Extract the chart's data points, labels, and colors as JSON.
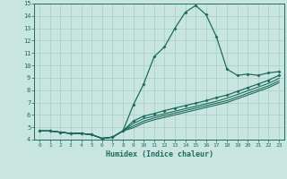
{
  "xlabel": "Humidex (Indice chaleur)",
  "bg_color": "#c8e6df",
  "line_color": "#1e6b5e",
  "grid_color": "#a8cec6",
  "xlim": [
    -0.5,
    23.5
  ],
  "ylim": [
    4,
    15
  ],
  "xticks": [
    0,
    1,
    2,
    3,
    4,
    5,
    6,
    7,
    8,
    9,
    10,
    11,
    12,
    13,
    14,
    15,
    16,
    17,
    18,
    19,
    20,
    21,
    22,
    23
  ],
  "yticks": [
    4,
    5,
    6,
    7,
    8,
    9,
    10,
    11,
    12,
    13,
    14,
    15
  ],
  "line1_x": [
    0,
    1,
    2,
    3,
    4,
    5,
    6,
    7,
    8,
    9,
    10,
    11,
    12,
    13,
    14,
    15,
    16,
    17,
    18,
    19,
    20,
    21,
    22,
    23
  ],
  "line1_y": [
    4.7,
    4.7,
    4.6,
    4.5,
    4.5,
    4.4,
    4.1,
    4.2,
    4.7,
    6.8,
    8.5,
    10.7,
    11.5,
    13.0,
    14.3,
    14.85,
    14.1,
    12.3,
    9.7,
    9.2,
    9.3,
    9.2,
    9.4,
    9.5
  ],
  "line2_x": [
    0,
    1,
    2,
    3,
    4,
    5,
    6,
    7,
    8,
    9,
    10,
    11,
    12,
    13,
    14,
    15,
    16,
    17,
    18,
    19,
    20,
    21,
    22,
    23
  ],
  "line2_y": [
    4.7,
    4.7,
    4.6,
    4.5,
    4.5,
    4.4,
    4.1,
    4.2,
    4.7,
    5.5,
    5.9,
    6.1,
    6.35,
    6.55,
    6.75,
    6.95,
    7.15,
    7.4,
    7.6,
    7.9,
    8.2,
    8.5,
    8.8,
    9.2
  ],
  "line3_x": [
    0,
    1,
    2,
    3,
    4,
    5,
    6,
    7,
    8,
    9,
    10,
    11,
    12,
    13,
    14,
    15,
    16,
    17,
    18,
    19,
    20,
    21,
    22,
    23
  ],
  "line3_y": [
    4.7,
    4.7,
    4.6,
    4.5,
    4.5,
    4.4,
    4.1,
    4.2,
    4.7,
    5.3,
    5.7,
    5.9,
    6.1,
    6.3,
    6.5,
    6.7,
    6.9,
    7.1,
    7.35,
    7.65,
    7.95,
    8.25,
    8.55,
    8.95
  ],
  "line4_x": [
    0,
    1,
    2,
    3,
    4,
    5,
    6,
    7,
    8,
    9,
    10,
    11,
    12,
    13,
    14,
    15,
    16,
    17,
    18,
    19,
    20,
    21,
    22,
    23
  ],
  "line4_y": [
    4.7,
    4.7,
    4.6,
    4.5,
    4.5,
    4.4,
    4.1,
    4.2,
    4.7,
    5.1,
    5.5,
    5.75,
    5.95,
    6.15,
    6.35,
    6.55,
    6.75,
    6.95,
    7.15,
    7.45,
    7.75,
    8.05,
    8.35,
    8.75
  ],
  "line5_x": [
    0,
    1,
    2,
    3,
    4,
    5,
    6,
    7,
    8,
    9,
    10,
    11,
    12,
    13,
    14,
    15,
    16,
    17,
    18,
    19,
    20,
    21,
    22,
    23
  ],
  "line5_y": [
    4.7,
    4.7,
    4.6,
    4.5,
    4.5,
    4.4,
    4.1,
    4.2,
    4.7,
    4.95,
    5.35,
    5.6,
    5.8,
    6.0,
    6.2,
    6.4,
    6.6,
    6.8,
    7.0,
    7.3,
    7.6,
    7.9,
    8.2,
    8.6
  ]
}
